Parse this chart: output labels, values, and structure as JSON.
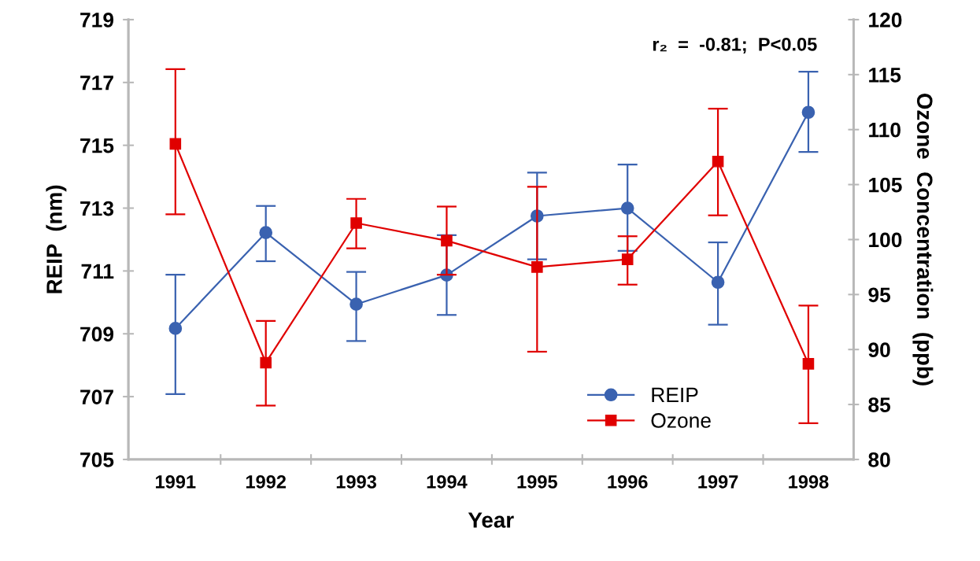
{
  "chart_data": {
    "type": "line",
    "xlabel": "Year",
    "ylabel": "REIP  (nm)",
    "y2label": "Ozone  Concentration  (ppb)",
    "categories": [
      "1991",
      "1992",
      "1993",
      "1994",
      "1995",
      "1996",
      "1997",
      "1998"
    ],
    "series": [
      {
        "name": "REIP",
        "color": "#3a62b0",
        "marker": "circle",
        "values": [
          709.17,
          712.22,
          709.94,
          710.87,
          712.75,
          713.0,
          710.64,
          716.05
        ],
        "errors": [
          [
            707.08,
            710.88
          ],
          [
            711.31,
            713.07
          ],
          [
            708.77,
            710.97
          ],
          [
            709.6,
            712.14
          ],
          [
            711.37,
            714.13
          ],
          [
            711.64,
            714.39
          ],
          [
            709.29,
            711.91
          ],
          [
            714.79,
            717.34
          ]
        ]
      },
      {
        "name": "Ozone",
        "color": "#e00000",
        "marker": "square",
        "axis": "y2",
        "values": [
          108.7,
          88.8,
          101.5,
          99.9,
          97.5,
          98.2,
          107.1,
          88.7
        ],
        "errors": [
          [
            102.3,
            115.5
          ],
          [
            84.9,
            92.6
          ],
          [
            99.2,
            103.7
          ],
          [
            96.8,
            103.0
          ],
          [
            89.8,
            104.8
          ],
          [
            95.9,
            100.3
          ],
          [
            102.2,
            111.9
          ],
          [
            83.3,
            94.0
          ]
        ]
      }
    ],
    "ylim": [
      705,
      719
    ],
    "yticks": [
      705,
      707,
      709,
      711,
      713,
      715,
      717,
      719
    ],
    "y2lim": [
      80,
      120
    ],
    "y2ticks": [
      80,
      85,
      90,
      95,
      100,
      105,
      110,
      115,
      120
    ],
    "grid": false,
    "legend": "bottom right",
    "annotations": [
      "r₂  =  -0.81;  P<0.05"
    ]
  }
}
